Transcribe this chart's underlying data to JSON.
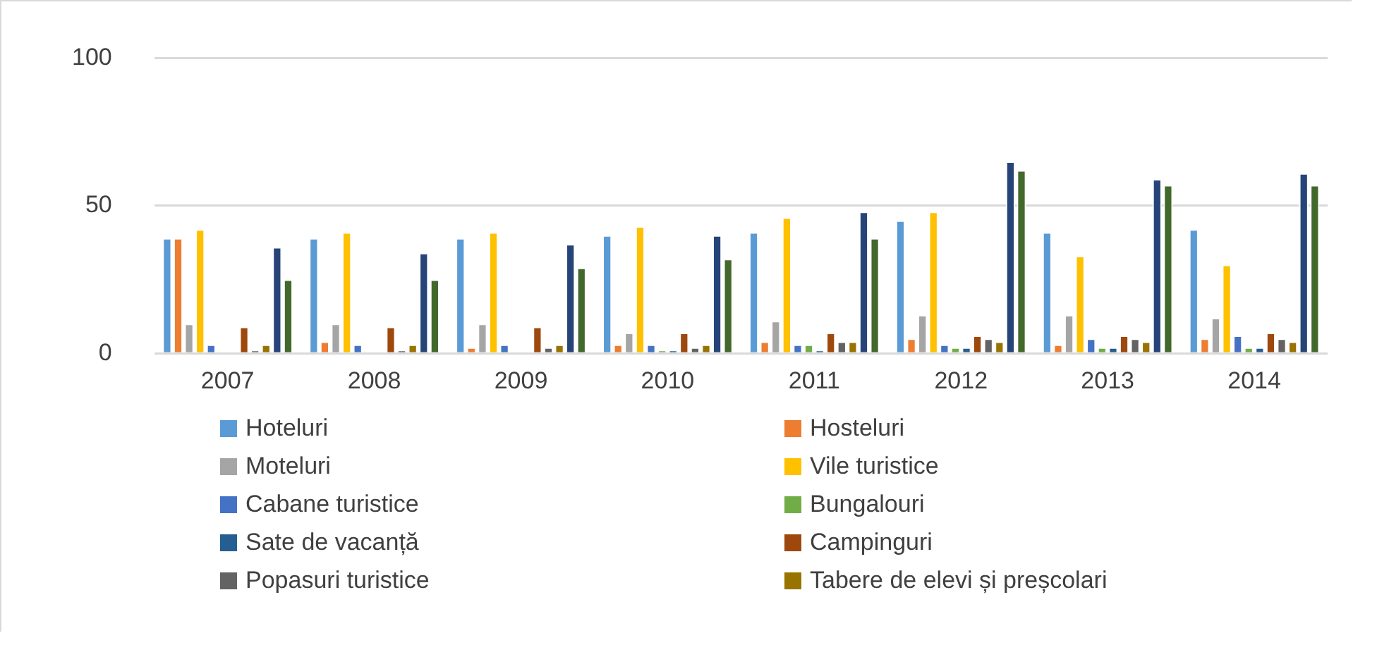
{
  "chart_data": {
    "type": "bar",
    "categories": [
      "2007",
      "2008",
      "2009",
      "2010",
      "2011",
      "2012",
      "2013",
      "2014"
    ],
    "series": [
      {
        "name": "Hoteluri",
        "color": "#5b9bd5",
        "values": [
          39,
          39,
          39,
          40,
          41,
          45,
          41,
          42
        ]
      },
      {
        "name": "Hosteluri",
        "color": "#ed7d31",
        "values": [
          39,
          4,
          2,
          3,
          4,
          5,
          3,
          5
        ]
      },
      {
        "name": "Moteluri",
        "color": "#a5a5a5",
        "values": [
          10,
          10,
          10,
          7,
          11,
          13,
          13,
          12
        ]
      },
      {
        "name": "Vile turistice",
        "color": "#ffc000",
        "values": [
          42,
          41,
          41,
          43,
          46,
          48,
          33,
          30
        ]
      },
      {
        "name": "Cabane turistice",
        "color": "#4472c4",
        "values": [
          3,
          3,
          3,
          3,
          3,
          3,
          5,
          6
        ]
      },
      {
        "name": "Bungalouri",
        "color": "#70ad47",
        "values": [
          0,
          0,
          0,
          1,
          3,
          2,
          2,
          2
        ]
      },
      {
        "name": "Sate de vacanță",
        "color": "#255e91",
        "values": [
          0,
          0,
          0,
          1,
          1,
          2,
          2,
          2
        ]
      },
      {
        "name": "Campinguri",
        "color": "#9e480e",
        "values": [
          9,
          9,
          9,
          7,
          7,
          6,
          6,
          7
        ]
      },
      {
        "name": "Popasuri turistice",
        "color": "#636363",
        "values": [
          1,
          1,
          2,
          2,
          4,
          5,
          5,
          5
        ]
      },
      {
        "name": "Tabere de elevi și preșcolari",
        "color": "#997300",
        "values": [
          3,
          3,
          3,
          3,
          4,
          4,
          4,
          4
        ]
      },
      {
        "color": "#264478",
        "values": [
          36,
          34,
          37,
          40,
          48,
          65,
          59,
          61
        ]
      },
      {
        "color": "#43682b",
        "values": [
          25,
          25,
          29,
          32,
          39,
          62,
          57,
          57
        ]
      }
    ],
    "ylim": [
      0,
      100
    ],
    "yticks": [
      0,
      50,
      100
    ],
    "grid": "y",
    "legend": "bottom"
  }
}
